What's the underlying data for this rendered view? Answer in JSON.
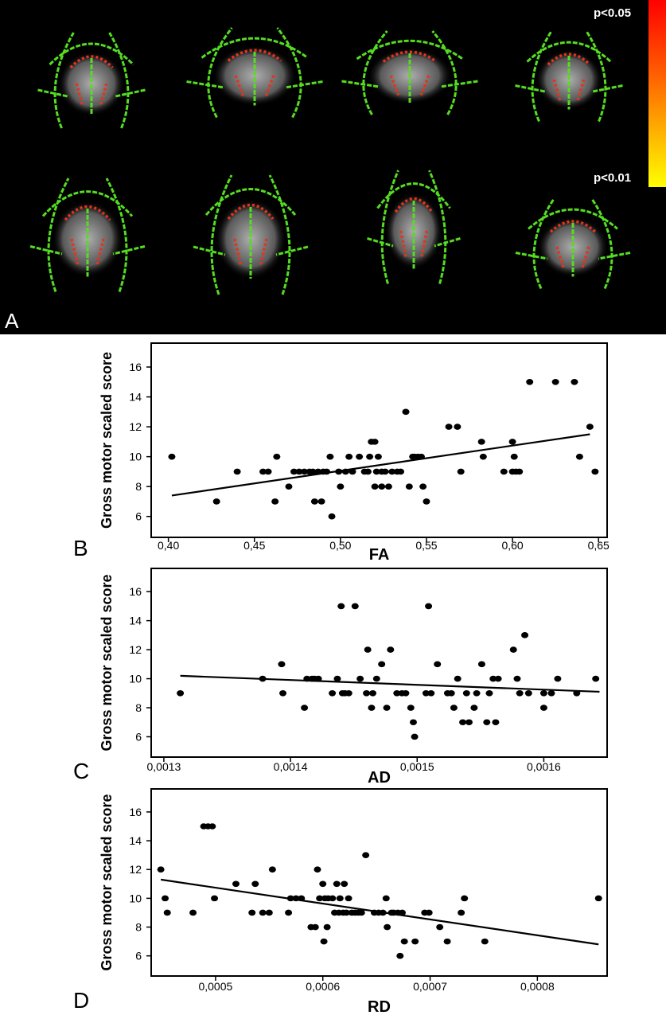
{
  "panel_a": {
    "letter": "A",
    "colorbar": {
      "top_label": "p<0.05",
      "bottom_label": "p<0.01",
      "top_color": "#ff0000",
      "bottom_color": "#ffff00"
    },
    "skeleton_color": "#55dd22"
  },
  "chart_data": [
    {
      "type": "scatter",
      "panel": "B",
      "xlabel": "FA",
      "ylabel": "Gross motor scaled score",
      "xlim": [
        0.39,
        0.655
      ],
      "ylim": [
        4.6,
        17.6
      ],
      "xticks": [
        "0,40",
        "0,45",
        "0,50",
        "0,55",
        "0,60",
        "0,65"
      ],
      "xtick_values": [
        0.4,
        0.45,
        0.5,
        0.55,
        0.6,
        0.65
      ],
      "yticks": [
        "6",
        "8",
        "10",
        "12",
        "14",
        "16"
      ],
      "ytick_values": [
        6,
        8,
        10,
        12,
        14,
        16
      ],
      "fit_line": [
        [
          0.402,
          7.4
        ],
        [
          0.645,
          11.5
        ]
      ],
      "points": [
        [
          0.402,
          10
        ],
        [
          0.428,
          7
        ],
        [
          0.44,
          9
        ],
        [
          0.455,
          9
        ],
        [
          0.458,
          9
        ],
        [
          0.462,
          7
        ],
        [
          0.463,
          10
        ],
        [
          0.47,
          8
        ],
        [
          0.473,
          9
        ],
        [
          0.476,
          9
        ],
        [
          0.479,
          9
        ],
        [
          0.482,
          9
        ],
        [
          0.484,
          9
        ],
        [
          0.485,
          7
        ],
        [
          0.487,
          9
        ],
        [
          0.489,
          7
        ],
        [
          0.49,
          9
        ],
        [
          0.492,
          9
        ],
        [
          0.494,
          10
        ],
        [
          0.495,
          6
        ],
        [
          0.499,
          9
        ],
        [
          0.5,
          8
        ],
        [
          0.503,
          9
        ],
        [
          0.505,
          10
        ],
        [
          0.507,
          9
        ],
        [
          0.511,
          10
        ],
        [
          0.514,
          9
        ],
        [
          0.516,
          9
        ],
        [
          0.517,
          10
        ],
        [
          0.518,
          11
        ],
        [
          0.52,
          11
        ],
        [
          0.52,
          8
        ],
        [
          0.521,
          9
        ],
        [
          0.522,
          10
        ],
        [
          0.524,
          9
        ],
        [
          0.524,
          8
        ],
        [
          0.526,
          9
        ],
        [
          0.528,
          8
        ],
        [
          0.53,
          9
        ],
        [
          0.533,
          9
        ],
        [
          0.535,
          9
        ],
        [
          0.538,
          13
        ],
        [
          0.54,
          8
        ],
        [
          0.542,
          10
        ],
        [
          0.543,
          10
        ],
        [
          0.545,
          10
        ],
        [
          0.547,
          10
        ],
        [
          0.548,
          8
        ],
        [
          0.55,
          7
        ],
        [
          0.563,
          12
        ],
        [
          0.568,
          12
        ],
        [
          0.57,
          9
        ],
        [
          0.582,
          11
        ],
        [
          0.583,
          10
        ],
        [
          0.595,
          9
        ],
        [
          0.6,
          9
        ],
        [
          0.6,
          11
        ],
        [
          0.601,
          10
        ],
        [
          0.602,
          9
        ],
        [
          0.604,
          9
        ],
        [
          0.61,
          15
        ],
        [
          0.625,
          15
        ],
        [
          0.636,
          15
        ],
        [
          0.639,
          10
        ],
        [
          0.645,
          12
        ],
        [
          0.648,
          9
        ]
      ]
    },
    {
      "type": "scatter",
      "panel": "C",
      "xlabel": "AD",
      "ylabel": "Gross motor scaled score",
      "xlim": [
        0.00129,
        0.00165
      ],
      "ylim": [
        4.6,
        17.6
      ],
      "xticks": [
        "0,0013",
        "0,0014",
        "0,0015",
        "0,0016"
      ],
      "xtick_values": [
        0.0013,
        0.0014,
        0.0015,
        0.0016
      ],
      "yticks": [
        "6",
        "8",
        "10",
        "12",
        "14",
        "16"
      ],
      "ytick_values": [
        6,
        8,
        10,
        12,
        14,
        16
      ],
      "fit_line": [
        [
          0.001313,
          10.2
        ],
        [
          0.001644,
          9.1
        ]
      ],
      "points": [
        [
          0.001313,
          9
        ],
        [
          0.001378,
          10
        ],
        [
          0.001393,
          11
        ],
        [
          0.001394,
          9
        ],
        [
          0.001411,
          8
        ],
        [
          0.001413,
          10
        ],
        [
          0.001417,
          10
        ],
        [
          0.001419,
          10
        ],
        [
          0.001422,
          10
        ],
        [
          0.001433,
          9
        ],
        [
          0.001437,
          10
        ],
        [
          0.00144,
          15
        ],
        [
          0.001441,
          9
        ],
        [
          0.001443,
          9
        ],
        [
          0.001446,
          9
        ],
        [
          0.001451,
          15
        ],
        [
          0.001455,
          10
        ],
        [
          0.00146,
          9
        ],
        [
          0.001461,
          12
        ],
        [
          0.001464,
          8
        ],
        [
          0.001465,
          9
        ],
        [
          0.001468,
          10
        ],
        [
          0.001472,
          11
        ],
        [
          0.001476,
          8
        ],
        [
          0.001479,
          12
        ],
        [
          0.001484,
          9
        ],
        [
          0.001488,
          9
        ],
        [
          0.001491,
          9
        ],
        [
          0.001495,
          8
        ],
        [
          0.001497,
          7
        ],
        [
          0.001498,
          6
        ],
        [
          0.001507,
          9
        ],
        [
          0.001509,
          15
        ],
        [
          0.001511,
          9
        ],
        [
          0.001516,
          11
        ],
        [
          0.001524,
          9
        ],
        [
          0.001527,
          9
        ],
        [
          0.001529,
          8
        ],
        [
          0.001532,
          10
        ],
        [
          0.001536,
          7
        ],
        [
          0.001539,
          9
        ],
        [
          0.001541,
          7
        ],
        [
          0.001545,
          8
        ],
        [
          0.001547,
          9
        ],
        [
          0.001551,
          11
        ],
        [
          0.001555,
          7
        ],
        [
          0.001557,
          9
        ],
        [
          0.00156,
          10
        ],
        [
          0.001564,
          10
        ],
        [
          0.001576,
          12
        ],
        [
          0.001579,
          10
        ],
        [
          0.001581,
          9
        ],
        [
          0.001585,
          13
        ],
        [
          0.001588,
          9
        ],
        [
          0.0016,
          9
        ],
        [
          0.001606,
          9
        ],
        [
          0.001611,
          10
        ],
        [
          0.001626,
          9
        ],
        [
          0.001641,
          10
        ],
        [
          0.001562,
          7
        ],
        [
          0.0016,
          8
        ]
      ]
    },
    {
      "type": "scatter",
      "panel": "D",
      "xlabel": "RD",
      "ylabel": "Gross motor scaled score",
      "xlim": [
        0.00044,
        0.000865
      ],
      "ylim": [
        4.6,
        17.6
      ],
      "xticks": [
        "0,0005",
        "0,0006",
        "0,0007",
        "0,0008"
      ],
      "xtick_values": [
        0.0005,
        0.0006,
        0.0007,
        0.0008
      ],
      "yticks": [
        "6",
        "8",
        "10",
        "12",
        "14",
        "16"
      ],
      "ytick_values": [
        6,
        8,
        10,
        12,
        14,
        16
      ],
      "fit_line": [
        [
          0.000449,
          11.3
        ],
        [
          0.000857,
          6.8
        ]
      ],
      "points": [
        [
          0.000449,
          12
        ],
        [
          0.000453,
          10
        ],
        [
          0.000455,
          9
        ],
        [
          0.000479,
          9
        ],
        [
          0.000489,
          15
        ],
        [
          0.000493,
          15
        ],
        [
          0.000497,
          15
        ],
        [
          0.000499,
          10
        ],
        [
          0.000519,
          11
        ],
        [
          0.000534,
          9
        ],
        [
          0.000537,
          11
        ],
        [
          0.000544,
          9
        ],
        [
          0.00055,
          9
        ],
        [
          0.000553,
          12
        ],
        [
          0.000568,
          9
        ],
        [
          0.00057,
          10
        ],
        [
          0.000575,
          10
        ],
        [
          0.00058,
          10
        ],
        [
          0.000589,
          8
        ],
        [
          0.000593,
          8
        ],
        [
          0.000595,
          12
        ],
        [
          0.000597,
          10
        ],
        [
          0.0006,
          11
        ],
        [
          0.000601,
          7
        ],
        [
          0.000602,
          10
        ],
        [
          0.000604,
          8
        ],
        [
          0.000605,
          10
        ],
        [
          0.000609,
          10
        ],
        [
          0.000611,
          9
        ],
        [
          0.000613,
          11
        ],
        [
          0.000615,
          9
        ],
        [
          0.000616,
          10
        ],
        [
          0.000619,
          9
        ],
        [
          0.00062,
          11
        ],
        [
          0.000622,
          9
        ],
        [
          0.000624,
          10
        ],
        [
          0.000627,
          9
        ],
        [
          0.00063,
          9
        ],
        [
          0.000633,
          9
        ],
        [
          0.000636,
          9
        ],
        [
          0.00064,
          13
        ],
        [
          0.000648,
          9
        ],
        [
          0.000652,
          9
        ],
        [
          0.000656,
          9
        ],
        [
          0.000659,
          10
        ],
        [
          0.00066,
          8
        ],
        [
          0.000664,
          9
        ],
        [
          0.000666,
          9
        ],
        [
          0.00067,
          9
        ],
        [
          0.000672,
          6
        ],
        [
          0.000674,
          9
        ],
        [
          0.000676,
          7
        ],
        [
          0.000686,
          7
        ],
        [
          0.000695,
          9
        ],
        [
          0.000699,
          9
        ],
        [
          0.000709,
          8
        ],
        [
          0.000716,
          7
        ],
        [
          0.000729,
          9
        ],
        [
          0.000732,
          10
        ],
        [
          0.000751,
          7
        ],
        [
          0.000857,
          10
        ]
      ]
    }
  ]
}
